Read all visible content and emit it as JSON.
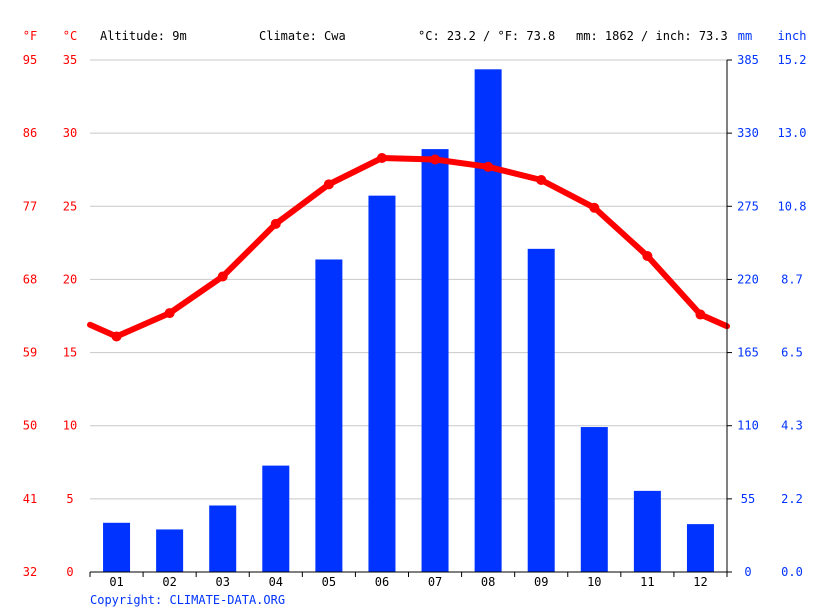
{
  "header": {
    "altitude": "Altitude: 9m",
    "climate": "Climate: Cwa",
    "temp_avg": "°C: 23.2 / °F: 73.8",
    "precip_total": "mm: 1862 / inch: 73.3"
  },
  "axis_units": {
    "fahrenheit": "°F",
    "celsius": "°C",
    "mm": "mm",
    "inch": "inch"
  },
  "copyright": "Copyright: CLIMATE-DATA.ORG",
  "colors": {
    "temperature": "#ff0000",
    "precipitation": "#0033ff",
    "grid": "#c8c8c8"
  },
  "chart_data": {
    "type": "bar",
    "categories": [
      "01",
      "02",
      "03",
      "04",
      "05",
      "06",
      "07",
      "08",
      "09",
      "10",
      "11",
      "12"
    ],
    "series": [
      {
        "kind": "bar",
        "axis": "right",
        "unit": "mm",
        "values": [
          37,
          32,
          50,
          80,
          235,
          283,
          318,
          378,
          243,
          109,
          61,
          36
        ]
      },
      {
        "kind": "line",
        "axis": "left",
        "unit": "°C",
        "values": [
          16.1,
          17.7,
          20.2,
          23.8,
          26.5,
          28.3,
          28.2,
          27.7,
          26.8,
          24.9,
          21.6,
          17.6
        ],
        "edge_values": [
          16.9,
          16.8
        ]
      }
    ],
    "y_left": {
      "celsius_ticks": [
        "0",
        "5",
        "10",
        "15",
        "20",
        "25",
        "30",
        "35"
      ],
      "fahrenheit_ticks": [
        "32",
        "41",
        "50",
        "59",
        "68",
        "77",
        "86",
        "95"
      ],
      "ylim": [
        0,
        35
      ]
    },
    "y_right": {
      "mm_ticks": [
        "0",
        "55",
        "110",
        "165",
        "220",
        "275",
        "330",
        "385"
      ],
      "inch_ticks": [
        "0.0",
        "2.2",
        "4.3",
        "6.5",
        "8.7",
        "10.8",
        "13.0",
        "15.2"
      ],
      "ylim": [
        0,
        385
      ]
    },
    "grid": true
  }
}
